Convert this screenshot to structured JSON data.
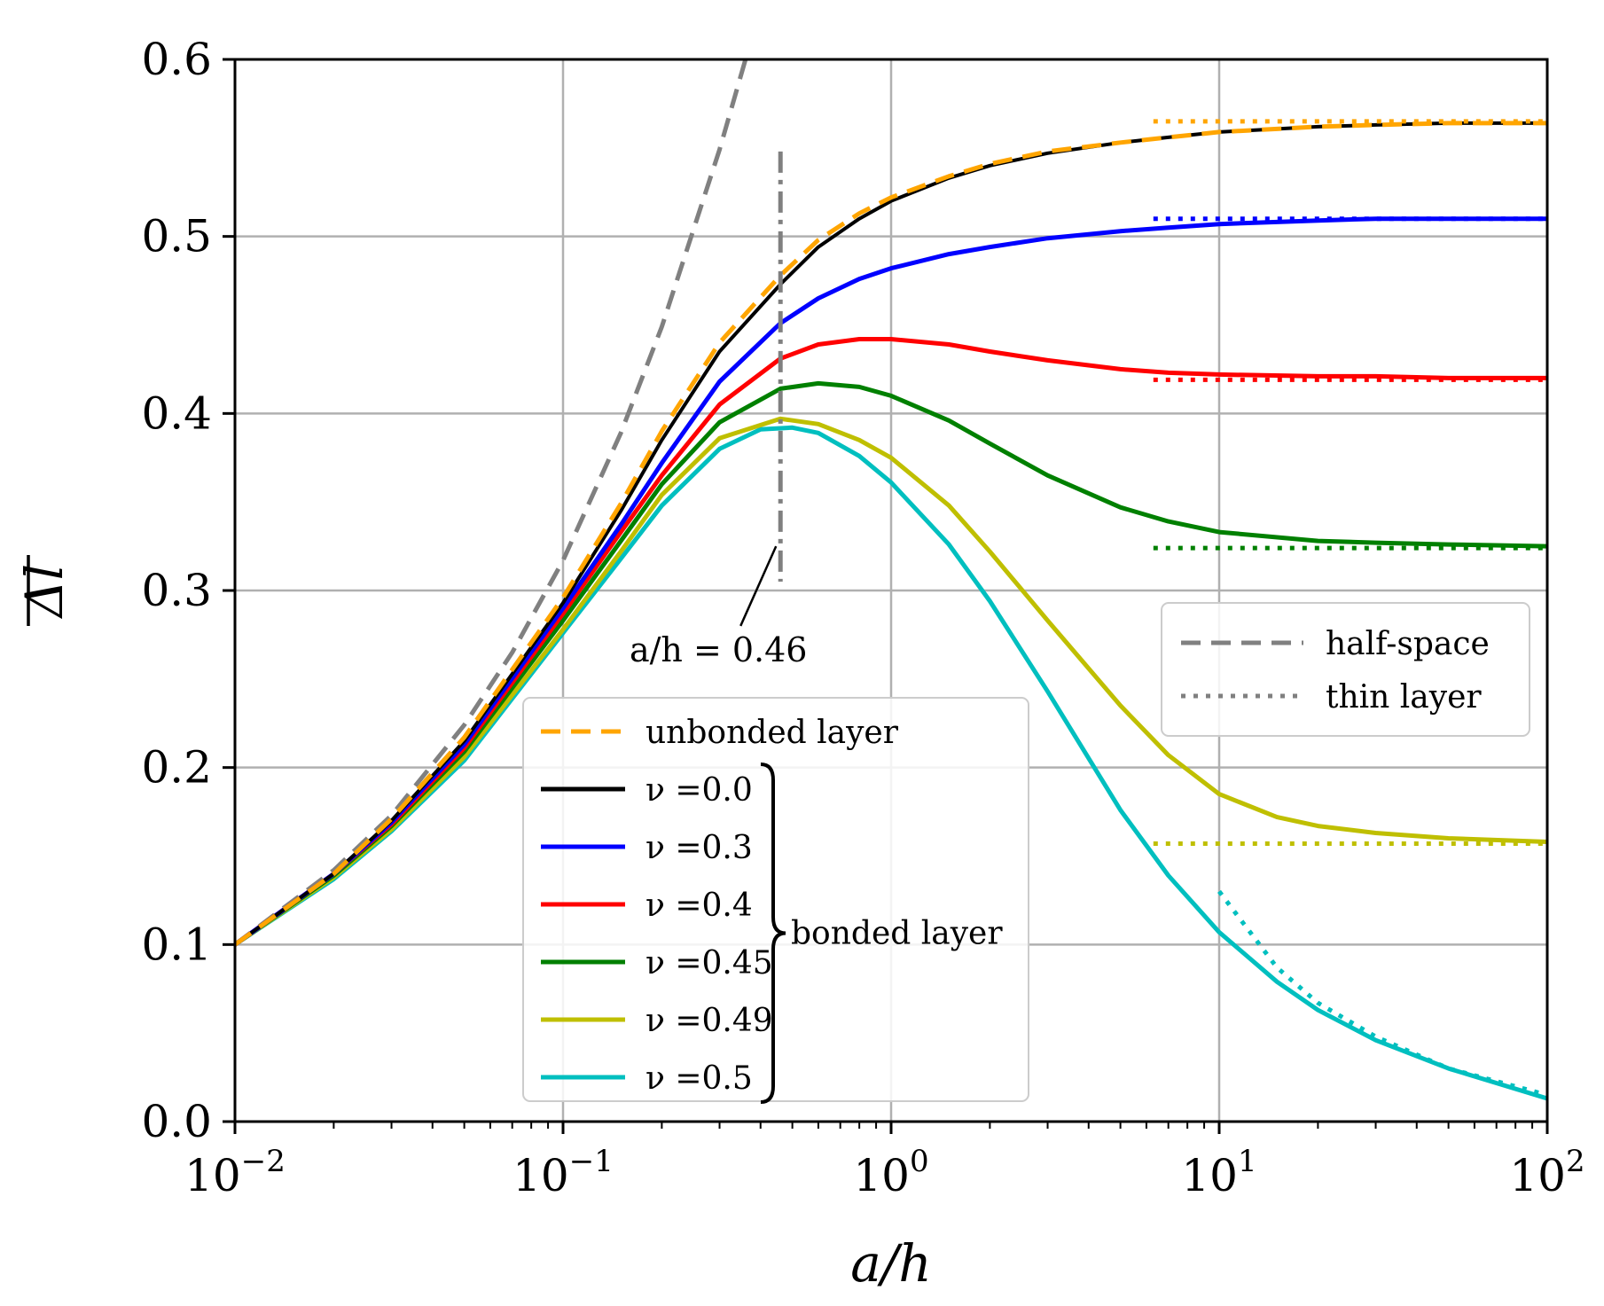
{
  "chart_data": {
    "type": "line",
    "xscale": "log",
    "xlim": [
      0.01,
      100
    ],
    "ylim": [
      0.0,
      0.6
    ],
    "grid": true,
    "xlabel": "a/h",
    "ylabel": "Δl",
    "x_ticks": [
      {
        "value": 0.01,
        "base": "10",
        "exp": "−2"
      },
      {
        "value": 0.1,
        "base": "10",
        "exp": "−1"
      },
      {
        "value": 1,
        "base": "10",
        "exp": "0"
      },
      {
        "value": 10,
        "base": "10",
        "exp": "1"
      },
      {
        "value": 100,
        "base": "10",
        "exp": "2"
      }
    ],
    "y_ticks": [
      "0.0",
      "0.1",
      "0.2",
      "0.3",
      "0.4",
      "0.5",
      "0.6"
    ],
    "annotation": {
      "text": "a/h = 0.46",
      "x": 0.46,
      "ymin": 0.305,
      "ymax": 0.548
    },
    "legend_main": {
      "placement": "lower-center",
      "brace_label": "bonded layer",
      "entries": [
        {
          "key": "unbonded",
          "label": "unbonded layer"
        },
        {
          "key": "nu0",
          "label": "ν =0.0"
        },
        {
          "key": "nu03",
          "label": "ν =0.3"
        },
        {
          "key": "nu04",
          "label": "ν =0.4"
        },
        {
          "key": "nu045",
          "label": "ν =0.45"
        },
        {
          "key": "nu049",
          "label": "ν =0.49"
        },
        {
          "key": "nu05",
          "label": "ν =0.5"
        }
      ]
    },
    "legend_style": {
      "placement": "center-right",
      "entries": [
        {
          "label": "half-space",
          "dash": "dashed"
        },
        {
          "label": "thin layer",
          "dash": "dotted"
        }
      ]
    },
    "series": [
      {
        "key": "halfspace",
        "name": "half-space",
        "color": "#808080",
        "dash": "dashed",
        "x": [
          0.01,
          0.02,
          0.03,
          0.05,
          0.07,
          0.1,
          0.15,
          0.2,
          0.3,
          0.36
        ],
        "y": [
          0.1,
          0.142,
          0.173,
          0.224,
          0.265,
          0.317,
          0.389,
          0.449,
          0.549,
          0.6
        ]
      },
      {
        "key": "nu0",
        "name": "ν =0.0",
        "color": "#000000",
        "dash": "solid",
        "x": [
          0.01,
          0.02,
          0.03,
          0.05,
          0.1,
          0.15,
          0.2,
          0.3,
          0.46,
          0.6,
          0.8,
          1,
          1.5,
          2,
          3,
          5,
          7,
          10,
          20,
          30,
          50,
          100
        ],
        "y": [
          0.1,
          0.14,
          0.17,
          0.215,
          0.293,
          0.345,
          0.385,
          0.435,
          0.473,
          0.494,
          0.51,
          0.52,
          0.533,
          0.54,
          0.547,
          0.553,
          0.556,
          0.559,
          0.562,
          0.563,
          0.564,
          0.564
        ]
      },
      {
        "key": "unbonded",
        "name": "unbonded layer",
        "color": "#ffa500",
        "dash": "dashed",
        "x": [
          0.01,
          0.02,
          0.03,
          0.05,
          0.1,
          0.15,
          0.2,
          0.3,
          0.46,
          0.6,
          0.8,
          1,
          1.5,
          2,
          3,
          5,
          7,
          10,
          20,
          30,
          50,
          100
        ],
        "y": [
          0.1,
          0.14,
          0.171,
          0.217,
          0.296,
          0.349,
          0.39,
          0.44,
          0.478,
          0.498,
          0.513,
          0.522,
          0.534,
          0.541,
          0.548,
          0.553,
          0.556,
          0.559,
          0.562,
          0.563,
          0.564,
          0.564
        ]
      },
      {
        "key": "nu03",
        "name": "ν =0.3",
        "color": "#0000ff",
        "dash": "solid",
        "x": [
          0.01,
          0.02,
          0.03,
          0.05,
          0.1,
          0.15,
          0.2,
          0.3,
          0.46,
          0.6,
          0.8,
          1,
          1.5,
          2,
          3,
          5,
          7,
          10,
          20,
          30,
          50,
          100
        ],
        "y": [
          0.1,
          0.14,
          0.169,
          0.213,
          0.29,
          0.337,
          0.372,
          0.418,
          0.451,
          0.465,
          0.476,
          0.482,
          0.49,
          0.494,
          0.499,
          0.503,
          0.505,
          0.507,
          0.509,
          0.51,
          0.51,
          0.51
        ]
      },
      {
        "key": "nu04",
        "name": "ν =0.4",
        "color": "#ff0000",
        "dash": "solid",
        "x": [
          0.01,
          0.02,
          0.03,
          0.05,
          0.1,
          0.15,
          0.2,
          0.3,
          0.46,
          0.6,
          0.8,
          1,
          1.5,
          2,
          3,
          5,
          7,
          10,
          20,
          30,
          50,
          100
        ],
        "y": [
          0.1,
          0.14,
          0.168,
          0.211,
          0.287,
          0.333,
          0.365,
          0.405,
          0.431,
          0.439,
          0.442,
          0.442,
          0.439,
          0.435,
          0.43,
          0.425,
          0.423,
          0.422,
          0.421,
          0.421,
          0.42,
          0.42
        ]
      },
      {
        "key": "nu045",
        "name": "ν =0.45",
        "color": "#008000",
        "dash": "solid",
        "x": [
          0.01,
          0.02,
          0.03,
          0.05,
          0.1,
          0.15,
          0.2,
          0.3,
          0.46,
          0.6,
          0.8,
          1,
          1.5,
          2,
          3,
          5,
          7,
          10,
          20,
          30,
          50,
          100
        ],
        "y": [
          0.1,
          0.139,
          0.167,
          0.209,
          0.283,
          0.328,
          0.36,
          0.395,
          0.414,
          0.417,
          0.415,
          0.41,
          0.396,
          0.383,
          0.365,
          0.347,
          0.339,
          0.333,
          0.328,
          0.327,
          0.326,
          0.325
        ]
      },
      {
        "key": "nu049",
        "name": "ν =0.49",
        "color": "#bfbf00",
        "dash": "solid",
        "x": [
          0.01,
          0.02,
          0.03,
          0.05,
          0.1,
          0.15,
          0.2,
          0.3,
          0.46,
          0.6,
          0.8,
          1,
          1.5,
          2,
          3,
          5,
          7,
          10,
          15,
          20,
          30,
          50,
          100
        ],
        "y": [
          0.1,
          0.138,
          0.165,
          0.206,
          0.278,
          0.322,
          0.354,
          0.386,
          0.397,
          0.394,
          0.385,
          0.375,
          0.348,
          0.322,
          0.283,
          0.235,
          0.207,
          0.185,
          0.172,
          0.167,
          0.163,
          0.16,
          0.158
        ]
      },
      {
        "key": "nu05",
        "name": "ν =0.5",
        "color": "#00bfbf",
        "dash": "solid",
        "x": [
          0.01,
          0.02,
          0.03,
          0.05,
          0.1,
          0.15,
          0.2,
          0.3,
          0.4,
          0.5,
          0.6,
          0.8,
          1,
          1.5,
          2,
          3,
          5,
          7,
          10,
          15,
          20,
          30,
          50,
          100
        ],
        "y": [
          0.1,
          0.137,
          0.164,
          0.204,
          0.276,
          0.318,
          0.348,
          0.38,
          0.391,
          0.392,
          0.389,
          0.376,
          0.361,
          0.326,
          0.294,
          0.243,
          0.176,
          0.139,
          0.107,
          0.079,
          0.063,
          0.046,
          0.03,
          0.013
        ]
      }
    ],
    "thin_layer_asymptotes": [
      {
        "key": "unbonded",
        "color": "#ffa500",
        "x": [
          6.3,
          100
        ],
        "y": [
          0.565,
          0.565
        ]
      },
      {
        "key": "nu03",
        "color": "#0000ff",
        "x": [
          6.3,
          100
        ],
        "y": [
          0.51,
          0.51
        ]
      },
      {
        "key": "nu04",
        "color": "#ff0000",
        "x": [
          6.3,
          100
        ],
        "y": [
          0.419,
          0.419
        ]
      },
      {
        "key": "nu045",
        "color": "#008000",
        "x": [
          6.3,
          100
        ],
        "y": [
          0.324,
          0.324
        ]
      },
      {
        "key": "nu049",
        "color": "#bfbf00",
        "x": [
          6.3,
          100
        ],
        "y": [
          0.157,
          0.157
        ]
      },
      {
        "key": "nu05",
        "color": "#00bfbf",
        "x": [
          10,
          15,
          20,
          30,
          50,
          100
        ],
        "y": [
          0.13,
          0.087,
          0.067,
          0.048,
          0.03,
          0.015
        ]
      }
    ]
  }
}
